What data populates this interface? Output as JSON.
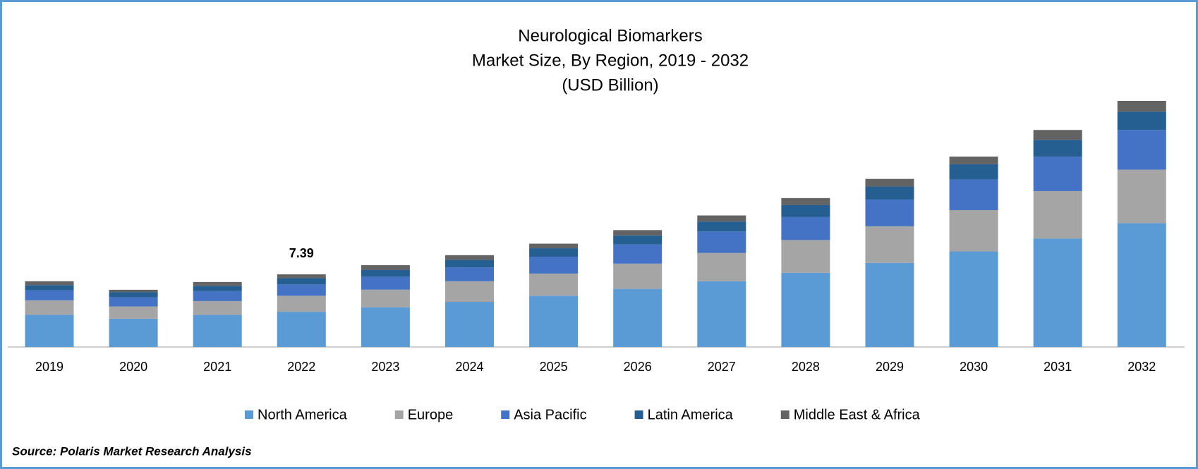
{
  "chart_data": {
    "type": "stacked_bar",
    "title": "Neurological Biomarkers",
    "subtitle": "Market Size, By Region, 2019 - 2032",
    "y_label": "(USD Billion)",
    "categories": [
      "2019",
      "2020",
      "2021",
      "2022",
      "2023",
      "2024",
      "2025",
      "2026",
      "2027",
      "2028",
      "2029",
      "2030",
      "2031",
      "2032"
    ],
    "series": [
      {
        "name": "North America",
        "color": "#5b9bd5",
        "values": [
          3.27,
          2.88,
          3.27,
          3.58,
          4.04,
          4.59,
          5.21,
          5.91,
          6.69,
          7.54,
          8.55,
          9.72,
          11.04,
          12.6
        ]
      },
      {
        "name": "Europe",
        "color": "#a5a5a5",
        "values": [
          1.48,
          1.24,
          1.4,
          1.63,
          1.79,
          2.1,
          2.26,
          2.57,
          2.88,
          3.34,
          3.73,
          4.2,
          4.82,
          5.44
        ]
      },
      {
        "name": "Asia Pacific",
        "color": "#4472c4",
        "values": [
          1.01,
          0.93,
          1.01,
          1.17,
          1.32,
          1.4,
          1.71,
          1.94,
          2.18,
          2.33,
          2.72,
          3.11,
          3.5,
          4.04
        ]
      },
      {
        "name": "Latin America",
        "color": "#255e91",
        "values": [
          0.54,
          0.54,
          0.54,
          0.62,
          0.7,
          0.78,
          0.86,
          0.93,
          1.01,
          1.24,
          1.32,
          1.56,
          1.71,
          1.87
        ]
      },
      {
        "name": "Middle East & Africa",
        "color": "#636363",
        "values": [
          0.39,
          0.23,
          0.39,
          0.39,
          0.47,
          0.47,
          0.47,
          0.54,
          0.62,
          0.7,
          0.78,
          0.78,
          1.01,
          1.09
        ]
      }
    ],
    "annotations": [
      {
        "category": "2022",
        "value": 7.39
      }
    ],
    "legend": "bottom",
    "source": "Source: Polaris Market Research Analysis"
  }
}
